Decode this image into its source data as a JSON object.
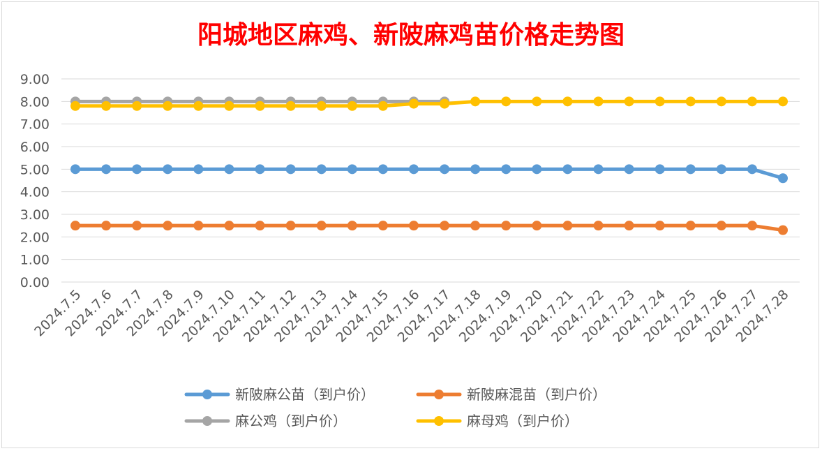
{
  "chart_data": {
    "type": "line",
    "title": "阳城地区麻鸡、新陂麻鸡苗价格走势图",
    "xlabel": "",
    "ylabel": "",
    "ylim": [
      0,
      9
    ],
    "yticks": [
      "0.00",
      "1.00",
      "2.00",
      "3.00",
      "4.00",
      "5.00",
      "6.00",
      "7.00",
      "8.00",
      "9.00"
    ],
    "grid": true,
    "legend_position": "bottom",
    "categories": [
      "2024.7.5",
      "2024.7.6",
      "2024.7.7",
      "2024.7.8",
      "2024.7.9",
      "2024.7.10",
      "2024.7.11",
      "2024.7.12",
      "2024.7.13",
      "2024.7.14",
      "2024.7.15",
      "2024.7.16",
      "2024.7.17",
      "2024.7.18",
      "2024.7.19",
      "2024.7.20",
      "2024.7.21",
      "2024.7.22",
      "2024.7.23",
      "2024.7.24",
      "2024.7.25",
      "2024.7.26",
      "2024.7.27",
      "2024.7.28"
    ],
    "series": [
      {
        "name": "新陂麻公苗（到户价）",
        "color": "#5b9bd5",
        "values": [
          5,
          5,
          5,
          5,
          5,
          5,
          5,
          5,
          5,
          5,
          5,
          5,
          5,
          5,
          5,
          5,
          5,
          5,
          5,
          5,
          5,
          5,
          5,
          4.6
        ]
      },
      {
        "name": "新陂麻混苗（到户价）",
        "color": "#ed7d31",
        "values": [
          2.5,
          2.5,
          2.5,
          2.5,
          2.5,
          2.5,
          2.5,
          2.5,
          2.5,
          2.5,
          2.5,
          2.5,
          2.5,
          2.5,
          2.5,
          2.5,
          2.5,
          2.5,
          2.5,
          2.5,
          2.5,
          2.5,
          2.5,
          2.3
        ]
      },
      {
        "name": "麻公鸡（到户价）",
        "color": "#a5a5a5",
        "values": [
          8,
          8,
          8,
          8,
          8,
          8,
          8,
          8,
          8,
          8,
          8,
          8,
          8,
          null,
          null,
          null,
          null,
          null,
          null,
          null,
          null,
          null,
          null,
          null
        ]
      },
      {
        "name": "麻母鸡（到户价）",
        "color": "#ffc000",
        "values": [
          7.8,
          7.8,
          7.8,
          7.8,
          7.8,
          7.8,
          7.8,
          7.8,
          7.8,
          7.8,
          7.8,
          7.9,
          7.9,
          8,
          8,
          8,
          8,
          8,
          8,
          8,
          8,
          8,
          8,
          8
        ]
      }
    ]
  }
}
